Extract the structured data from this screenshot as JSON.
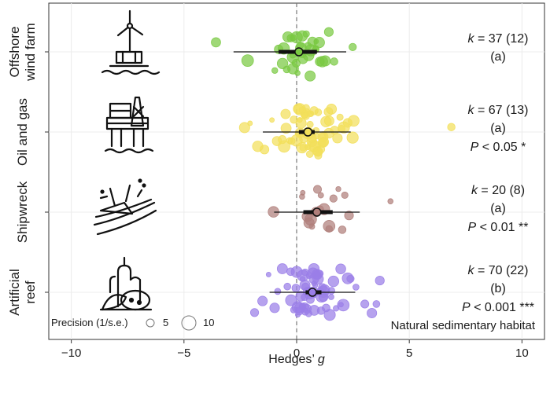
{
  "chart_data": {
    "type": "scatter",
    "subtype": "orchard_plot",
    "xlabel": "Hedges’ g",
    "xlabel_main": "Hedges’ ",
    "xlabel_italic": "g",
    "xlim": [
      -11,
      11
    ],
    "xticks": [
      -10,
      -5,
      0,
      5,
      10
    ],
    "xtick_labels": [
      "−10",
      "−5",
      "0",
      "5",
      "10"
    ],
    "reference_line": 0,
    "annotation": "Natural sedimentary habitat",
    "legend": {
      "title": "Precision (1/s.e.)",
      "items": [
        {
          "label": "5",
          "value": 5
        },
        {
          "label": "10",
          "value": 10
        }
      ],
      "position": "bottom-left"
    },
    "grid": true,
    "series": [
      {
        "name": "Offshore wind farm",
        "label_line1": "Offshore",
        "label_line2": "wind farm",
        "color": "#7ac943",
        "estimate": 0.1,
        "ci": [
          -0.8,
          0.9
        ],
        "pi": [
          -2.8,
          2.2
        ],
        "k_text": "k = 37 (12)",
        "k_value": "37 (12)",
        "group": "(a)",
        "p_text": "",
        "points": [
          -3.6,
          -2.2,
          -1.0,
          -0.6,
          -0.4,
          -0.2,
          -0.1,
          0.0,
          0.1,
          0.2,
          0.3,
          0.5,
          0.6,
          0.8,
          1.0,
          1.2,
          1.4,
          1.7,
          2.5,
          -0.5,
          0.4,
          0.9,
          -0.3,
          0.2,
          1.1,
          -0.8,
          0.7,
          0.0,
          -0.1,
          0.3,
          1.3,
          0.6,
          -0.2,
          0.5,
          0.1,
          0.8,
          -0.4
        ]
      },
      {
        "name": "Oil and gas",
        "label_line1": "Oil and gas",
        "label_line2": "",
        "color": "#f2df5a",
        "estimate": 0.5,
        "ci": [
          0.1,
          0.8
        ],
        "pi": [
          -1.5,
          2.4
        ],
        "k_text": "k = 67 (13)",
        "k_value": "67 (13)",
        "group": "(a)",
        "p_text": "P < 0.05 *",
        "p_value": "< 0.05 *",
        "points": [
          -2.3,
          -2.1,
          -1.8,
          -1.4,
          -1.1,
          -0.9,
          -0.7,
          -0.5,
          -0.3,
          -0.2,
          -0.1,
          0.0,
          0.1,
          0.2,
          0.3,
          0.4,
          0.5,
          0.6,
          0.7,
          0.8,
          0.9,
          1.0,
          1.1,
          1.2,
          1.3,
          1.4,
          1.5,
          1.6,
          1.7,
          1.8,
          2.0,
          2.2,
          2.5,
          2.6,
          6.8,
          0.15,
          0.35,
          0.55,
          0.75,
          0.95,
          1.15,
          1.35,
          0.05,
          0.25,
          0.45,
          0.65,
          0.85,
          1.05,
          1.25,
          0.2,
          0.4,
          0.6,
          0.8,
          1.0,
          0.1,
          0.3,
          0.5,
          0.7,
          0.9,
          -0.4,
          -0.6,
          1.9,
          2.1,
          0.0,
          0.6,
          1.2,
          0.3
        ]
      },
      {
        "name": "Shipwreck",
        "label_line1": "Shipwreck",
        "label_line2": "",
        "color": "#b07f7b",
        "estimate": 0.9,
        "ci": [
          0.3,
          1.6
        ],
        "pi": [
          -1.0,
          2.8
        ],
        "k_text": "k = 20 (8)",
        "k_value": "20 (8)",
        "group": "(a)",
        "p_text": "P < 0.01 **",
        "p_value": "< 0.01 **",
        "points": [
          -1.0,
          0.2,
          0.4,
          0.5,
          0.6,
          0.7,
          0.8,
          0.9,
          1.0,
          1.1,
          1.2,
          1.4,
          1.6,
          1.8,
          2.0,
          2.2,
          2.3,
          4.2,
          0.3,
          1.5
        ]
      },
      {
        "name": "Artificial reef",
        "label_line1": "Artificial",
        "label_line2": "reef",
        "color": "#9a7ee8",
        "estimate": 0.7,
        "ci": [
          0.4,
          1.1
        ],
        "pi": [
          -1.2,
          2.6
        ],
        "k_text": "k = 70 (22)",
        "k_value": "70 (22)",
        "group": "(b)",
        "p_text": "P < 0.001 ***",
        "p_value": "< 0.001 ***",
        "points": [
          -1.8,
          -1.5,
          -1.2,
          -1.0,
          -0.8,
          -0.6,
          -0.4,
          -0.2,
          0.0,
          0.1,
          0.2,
          0.3,
          0.4,
          0.5,
          0.6,
          0.7,
          0.8,
          0.9,
          1.0,
          1.1,
          1.2,
          1.3,
          1.4,
          1.5,
          1.6,
          1.7,
          1.8,
          2.0,
          2.2,
          2.4,
          2.6,
          3.0,
          3.3,
          3.6,
          3.7,
          0.05,
          0.15,
          0.25,
          0.35,
          0.45,
          0.55,
          0.65,
          0.75,
          0.85,
          0.95,
          1.05,
          1.15,
          1.25,
          0.2,
          0.4,
          0.6,
          0.8,
          1.0,
          0.3,
          0.5,
          0.7,
          0.9,
          0.1,
          -0.1,
          -0.3,
          1.9,
          2.1,
          0.6,
          0.4,
          0.8,
          1.2,
          0.0,
          0.5,
          1.0,
          0.7
        ]
      }
    ]
  }
}
